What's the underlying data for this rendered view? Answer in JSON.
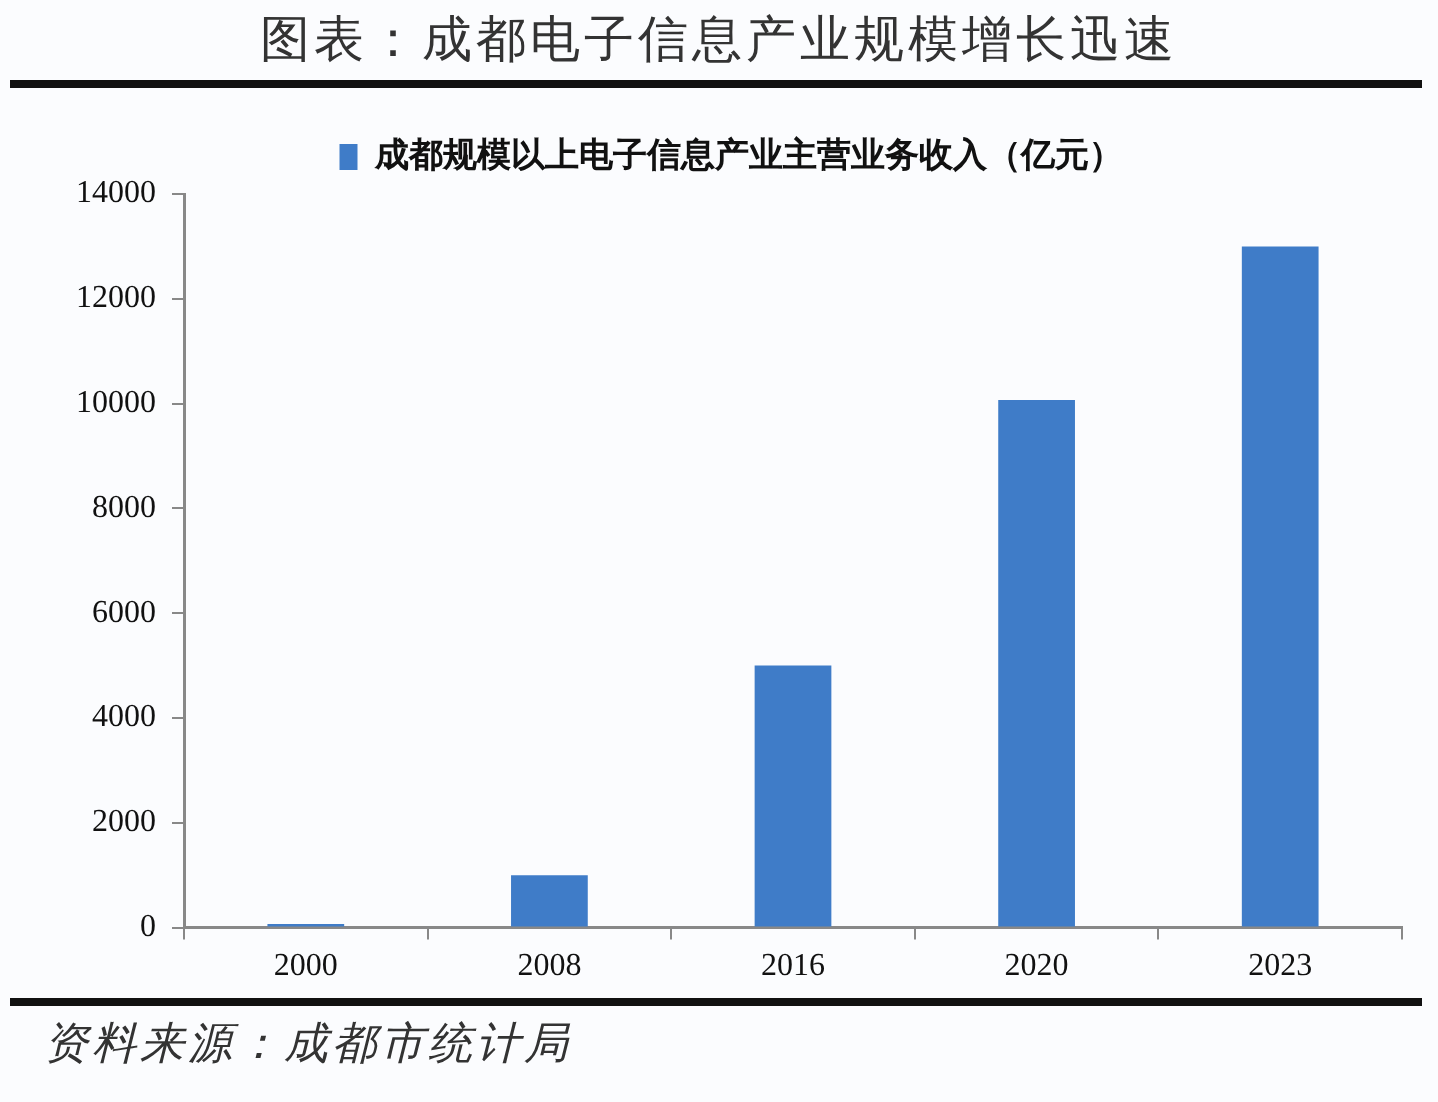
{
  "chart_data": {
    "type": "bar",
    "title": "图表：成都电子信息产业规模增长迅速",
    "categories": [
      "2000",
      "2008",
      "2016",
      "2020",
      "2023"
    ],
    "series": [
      {
        "name": "成都规模以上电子信息产业主营业务收入（亿元）",
        "color": "#3f7cc8",
        "values": [
          70,
          1000,
          5000,
          10070,
          13000
        ]
      }
    ],
    "ylim": [
      0,
      14000
    ],
    "yticks": [
      0,
      2000,
      4000,
      6000,
      8000,
      10000,
      12000,
      14000
    ],
    "grid": false,
    "legend": "top",
    "annotations": [
      "资料来源：成都市统计局"
    ]
  }
}
